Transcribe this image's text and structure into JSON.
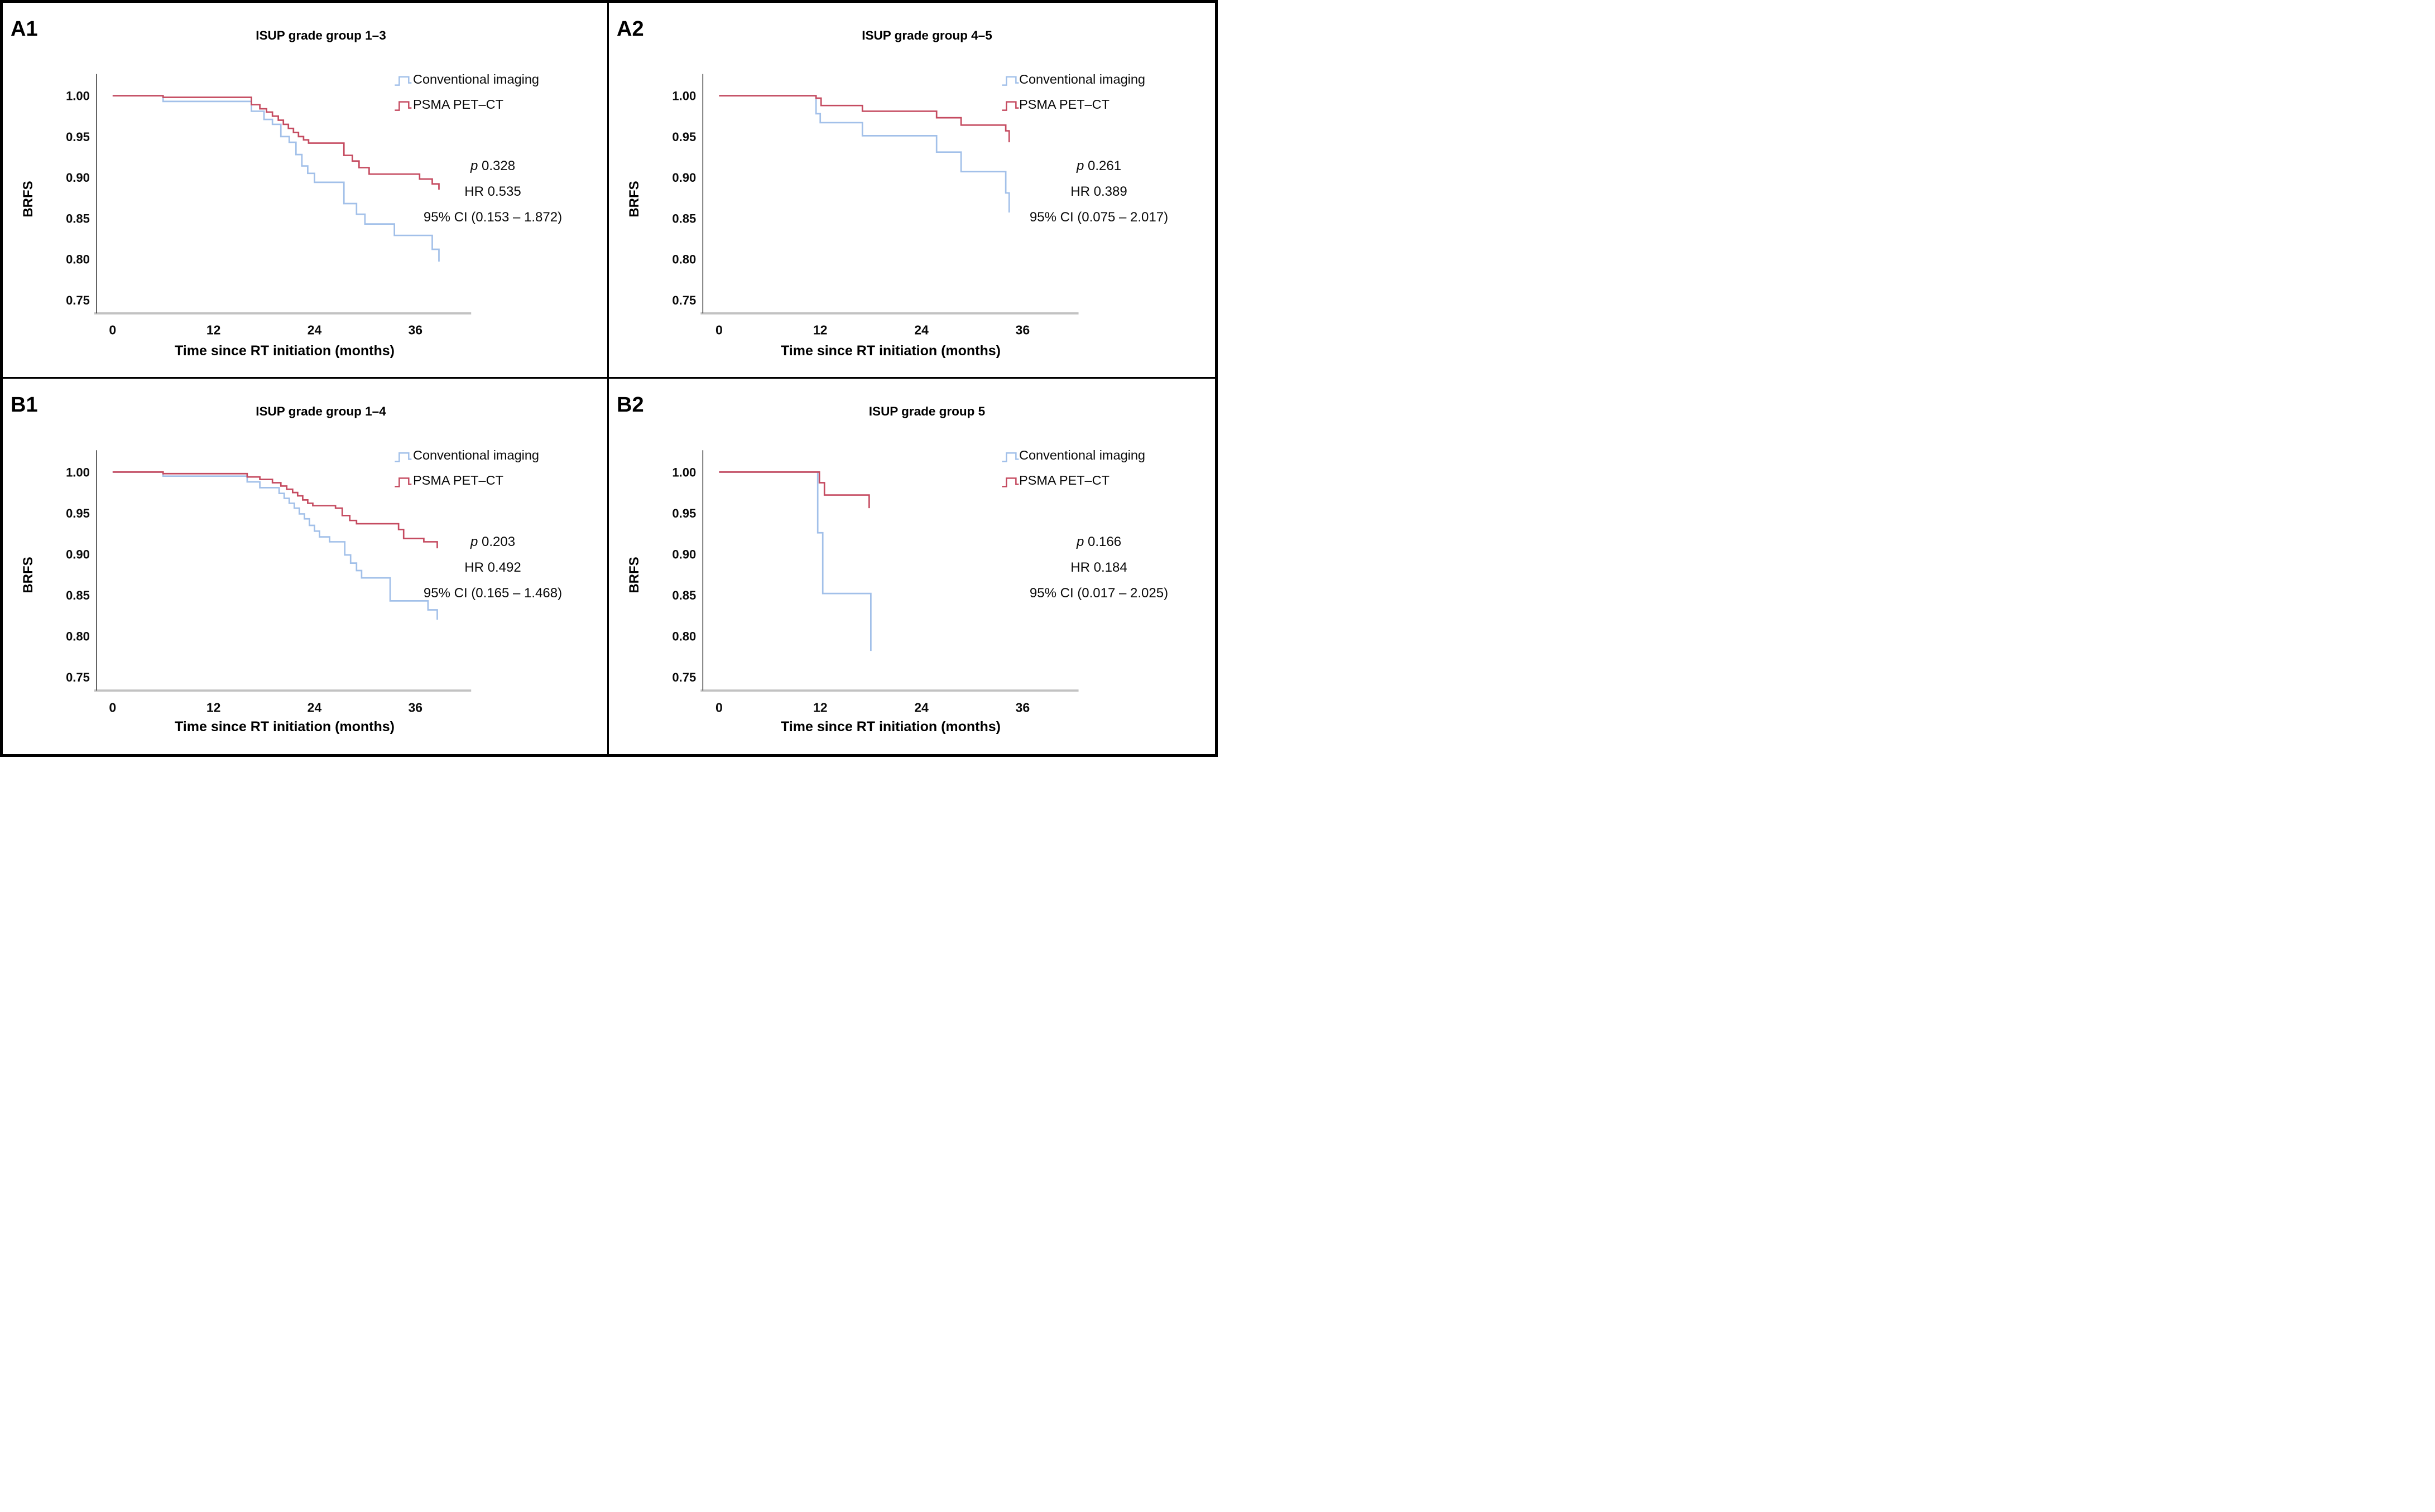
{
  "figure": {
    "background": "#ffffff",
    "border_color": "#000000",
    "axis_x_color": "#c2c2c2",
    "axis_y_color": "#444444",
    "tick_text_color": "#0a0a0a"
  },
  "chart_data": [
    {
      "type": "line",
      "subtype": "kaplan-meier-step",
      "panel_label": "A1",
      "title": "ISUP grade group 1–3",
      "xlabel": "Time since RT initiation (months)",
      "ylabel": "BRFS",
      "xlim": [
        0,
        42.5
      ],
      "ylim": [
        0.735,
        1.005
      ],
      "xticks": [
        "0",
        "12",
        "24",
        "36"
      ],
      "yticks": [
        "1.00",
        "0.95",
        "0.90",
        "0.85",
        "0.80",
        "0.75"
      ],
      "grid": false,
      "legend_position": "upper right",
      "stats": {
        "p_label": "p",
        "p_value": "0.328",
        "hr": "HR 0.535",
        "ci": "95% CI (0.153 – 1.872)"
      },
      "series": [
        {
          "name": "Conventional imaging",
          "color": "#A2C0E9",
          "points": [
            [
              0,
              1.0
            ],
            [
              6,
              0.993
            ],
            [
              16.5,
              0.981
            ],
            [
              18,
              0.971
            ],
            [
              19,
              0.965
            ],
            [
              20,
              0.95
            ],
            [
              21,
              0.943
            ],
            [
              21.8,
              0.928
            ],
            [
              22.5,
              0.914
            ],
            [
              23.2,
              0.905
            ],
            [
              24,
              0.894
            ],
            [
              27.5,
              0.868
            ],
            [
              29,
              0.855
            ],
            [
              30,
              0.843
            ],
            [
              33.5,
              0.829
            ],
            [
              38,
              0.812
            ],
            [
              38.8,
              0.797
            ]
          ]
        },
        {
          "name": "PSMA PET–CT",
          "color": "#C54B60",
          "points": [
            [
              0,
              1.0
            ],
            [
              6,
              0.998
            ],
            [
              16.5,
              0.989
            ],
            [
              17.5,
              0.984
            ],
            [
              18.3,
              0.98
            ],
            [
              19,
              0.975
            ],
            [
              19.7,
              0.97
            ],
            [
              20.3,
              0.965
            ],
            [
              20.9,
              0.96
            ],
            [
              21.5,
              0.955
            ],
            [
              22.1,
              0.95
            ],
            [
              22.7,
              0.946
            ],
            [
              23.3,
              0.942
            ],
            [
              27.5,
              0.927
            ],
            [
              28.5,
              0.92
            ],
            [
              29.3,
              0.912
            ],
            [
              30.5,
              0.904
            ],
            [
              36.5,
              0.898
            ],
            [
              38,
              0.892
            ],
            [
              38.8,
              0.885
            ]
          ]
        }
      ]
    },
    {
      "type": "line",
      "subtype": "kaplan-meier-step",
      "panel_label": "A2",
      "title": "ISUP grade group 4–5",
      "xlabel": "Time since RT initiation (months)",
      "ylabel": "BRFS",
      "xlim": [
        0,
        42.5
      ],
      "ylim": [
        0.735,
        1.005
      ],
      "xticks": [
        "0",
        "12",
        "24",
        "36"
      ],
      "yticks": [
        "1.00",
        "0.95",
        "0.90",
        "0.85",
        "0.80",
        "0.75"
      ],
      "grid": false,
      "legend_position": "upper right",
      "stats": {
        "p_label": "p",
        "p_value": "0.261",
        "hr": "HR 0.389",
        "ci": "95% CI (0.075 – 2.017)"
      },
      "series": [
        {
          "name": "Conventional imaging",
          "color": "#A2C0E9",
          "points": [
            [
              0,
              1.0
            ],
            [
              11.5,
              0.978
            ],
            [
              12,
              0.967
            ],
            [
              17,
              0.951
            ],
            [
              25.8,
              0.931
            ],
            [
              28.7,
              0.907
            ],
            [
              34,
              0.881
            ],
            [
              34.4,
              0.857
            ]
          ]
        },
        {
          "name": "PSMA PET–CT",
          "color": "#C54B60",
          "points": [
            [
              0,
              1.0
            ],
            [
              11.5,
              0.997
            ],
            [
              12.1,
              0.988
            ],
            [
              17,
              0.981
            ],
            [
              25.8,
              0.973
            ],
            [
              28.7,
              0.964
            ],
            [
              34,
              0.957
            ],
            [
              34.4,
              0.943
            ]
          ]
        }
      ]
    },
    {
      "type": "line",
      "subtype": "kaplan-meier-step",
      "panel_label": "B1",
      "title": "ISUP grade group 1–4",
      "xlabel": "Time since RT initiation (months)",
      "ylabel": "BRFS",
      "xlim": [
        0,
        42.5
      ],
      "ylim": [
        0.735,
        1.005
      ],
      "xticks": [
        "0",
        "12",
        "24",
        "36"
      ],
      "yticks": [
        "1.00",
        "0.95",
        "0.90",
        "0.85",
        "0.80",
        "0.75"
      ],
      "grid": false,
      "legend_position": "upper right",
      "stats": {
        "p_label": "p",
        "p_value": "0.203",
        "hr": "HR 0.492",
        "ci": "95% CI (0.165 – 1.468)"
      },
      "series": [
        {
          "name": "Conventional imaging",
          "color": "#A2C0E9",
          "points": [
            [
              0,
              1.0
            ],
            [
              6,
              0.995
            ],
            [
              16,
              0.988
            ],
            [
              17.5,
              0.981
            ],
            [
              19.8,
              0.974
            ],
            [
              20.4,
              0.968
            ],
            [
              21,
              0.962
            ],
            [
              21.6,
              0.956
            ],
            [
              22.2,
              0.949
            ],
            [
              22.8,
              0.943
            ],
            [
              23.4,
              0.935
            ],
            [
              24,
              0.928
            ],
            [
              24.6,
              0.921
            ],
            [
              25.8,
              0.915
            ],
            [
              27.6,
              0.899
            ],
            [
              28.3,
              0.889
            ],
            [
              29,
              0.88
            ],
            [
              29.6,
              0.871
            ],
            [
              33,
              0.843
            ],
            [
              37.5,
              0.832
            ],
            [
              38.6,
              0.82
            ]
          ]
        },
        {
          "name": "PSMA PET–CT",
          "color": "#C54B60",
          "points": [
            [
              0,
              1.0
            ],
            [
              6,
              0.998
            ],
            [
              16,
              0.994
            ],
            [
              17.5,
              0.991
            ],
            [
              19,
              0.987
            ],
            [
              20,
              0.983
            ],
            [
              20.7,
              0.979
            ],
            [
              21.4,
              0.975
            ],
            [
              22,
              0.971
            ],
            [
              22.6,
              0.966
            ],
            [
              23.2,
              0.962
            ],
            [
              23.8,
              0.959
            ],
            [
              26.5,
              0.956
            ],
            [
              27.3,
              0.947
            ],
            [
              28.2,
              0.941
            ],
            [
              29,
              0.937
            ],
            [
              34,
              0.93
            ],
            [
              34.6,
              0.919
            ],
            [
              37,
              0.915
            ],
            [
              38.6,
              0.907
            ]
          ]
        }
      ]
    },
    {
      "type": "line",
      "subtype": "kaplan-meier-step",
      "panel_label": "B2",
      "title": "ISUP grade group 5",
      "xlabel": "Time since RT initiation (months)",
      "ylabel": "BRFS",
      "xlim": [
        0,
        42.5
      ],
      "ylim": [
        0.735,
        1.005
      ],
      "xticks": [
        "0",
        "12",
        "24",
        "36"
      ],
      "yticks": [
        "1.00",
        "0.95",
        "0.90",
        "0.85",
        "0.80",
        "0.75"
      ],
      "grid": false,
      "legend_position": "upper right",
      "stats": {
        "p_label": "p",
        "p_value": "0.166",
        "hr": "HR 0.184",
        "ci": "95% CI (0.017 – 2.025)"
      },
      "series": [
        {
          "name": "Conventional imaging",
          "color": "#A2C0E9",
          "points": [
            [
              0,
              1.0
            ],
            [
              11.7,
              0.926
            ],
            [
              12.3,
              0.852
            ],
            [
              18,
              0.782
            ]
          ]
        },
        {
          "name": "PSMA PET–CT",
          "color": "#C54B60",
          "points": [
            [
              0,
              1.0
            ],
            [
              11.9,
              0.987
            ],
            [
              12.5,
              0.972
            ],
            [
              17.8,
              0.956
            ]
          ]
        }
      ]
    }
  ]
}
